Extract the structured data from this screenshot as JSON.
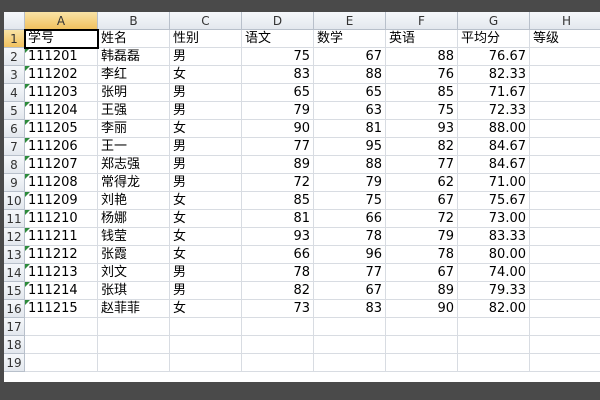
{
  "sheet": {
    "column_headers": [
      "A",
      "B",
      "C",
      "D",
      "E",
      "F",
      "G",
      "H"
    ],
    "row_headers": [
      "1",
      "2",
      "3",
      "4",
      "5",
      "6",
      "7",
      "8",
      "9",
      "10",
      "11",
      "12",
      "13",
      "14",
      "15",
      "16",
      "17",
      "18",
      "19"
    ],
    "rows": [
      [
        "学号",
        "姓名",
        "性别",
        "语文",
        "数学",
        "英语",
        "平均分",
        "等级"
      ],
      [
        "111201",
        "韩磊磊",
        "男",
        "75",
        "67",
        "88",
        "76.67"
      ],
      [
        "111202",
        "李红",
        "女",
        "83",
        "88",
        "76",
        "82.33"
      ],
      [
        "111203",
        "张明",
        "男",
        "65",
        "65",
        "85",
        "71.67"
      ],
      [
        "111204",
        "王强",
        "男",
        "79",
        "63",
        "75",
        "72.33"
      ],
      [
        "111205",
        "李丽",
        "女",
        "90",
        "81",
        "93",
        "88.00"
      ],
      [
        "111206",
        "王一",
        "男",
        "77",
        "95",
        "82",
        "84.67"
      ],
      [
        "111207",
        "郑志强",
        "男",
        "89",
        "88",
        "77",
        "84.67"
      ],
      [
        "111208",
        "常得龙",
        "男",
        "72",
        "79",
        "62",
        "71.00"
      ],
      [
        "111209",
        "刘艳",
        "女",
        "85",
        "75",
        "67",
        "75.67"
      ],
      [
        "111210",
        "杨娜",
        "女",
        "81",
        "66",
        "72",
        "73.00"
      ],
      [
        "111211",
        "钱莹",
        "女",
        "93",
        "78",
        "79",
        "83.33"
      ],
      [
        "111212",
        "张霞",
        "女",
        "66",
        "96",
        "78",
        "80.00"
      ],
      [
        "111213",
        "刘文",
        "男",
        "78",
        "77",
        "67",
        "74.00"
      ],
      [
        "111214",
        "张琪",
        "男",
        "82",
        "67",
        "89",
        "79.33"
      ],
      [
        "111215",
        "赵菲菲",
        "女",
        "73",
        "83",
        "90",
        "82.00"
      ]
    ]
  }
}
